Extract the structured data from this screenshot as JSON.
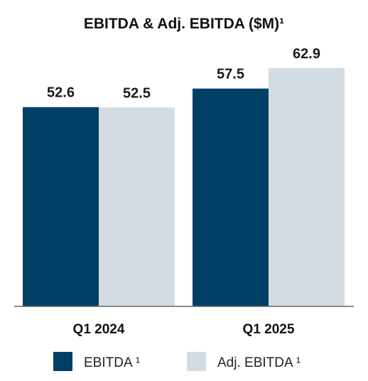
{
  "chart_data": {
    "type": "bar",
    "title": "EBITDA & Adj. EBITDA ($M)¹",
    "categories": [
      "Q1 2024",
      "Q1 2025"
    ],
    "series": [
      {
        "name": "EBITDA ¹",
        "color": "#003f66",
        "values": [
          52.6,
          57.5
        ]
      },
      {
        "name": "Adj. EBITDA ¹",
        "color": "#d3dbe3",
        "values": [
          52.5,
          62.9
        ]
      }
    ],
    "value_labels": [
      [
        "52.6",
        "57.5"
      ],
      [
        "52.5",
        "62.9"
      ]
    ],
    "ylim": [
      0,
      70
    ],
    "grid": false,
    "legend": "bottom"
  }
}
